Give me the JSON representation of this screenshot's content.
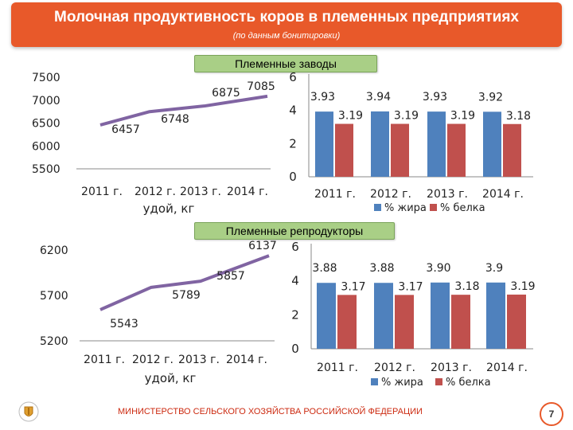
{
  "header": {
    "title": "Молочная продуктивность коров в племенных предприятиях",
    "subtitle": "(по данным бонитировки)"
  },
  "groups": {
    "zavody": "Племенные заводы",
    "reproduktory": "Племенные репродукторы"
  },
  "footer": {
    "text": "МИНИСТЕРСТВО СЕЛЬСКОГО ХОЗЯЙСТВА РОССИЙСКОЙ ФЕДЕРАЦИИ"
  },
  "page_number": "7",
  "colors": {
    "header": "#e8592a",
    "line": "#8064a2",
    "fat": "#4f81bd",
    "protein": "#c0504d",
    "group_label": "#a9cf86"
  },
  "chart_data": [
    {
      "type": "line",
      "x": [
        "2011 г.",
        "2012 г.",
        "2013 г.",
        "2014 г."
      ],
      "series": [
        {
          "values": [
            6457,
            6748,
            6875,
            7085
          ]
        }
      ],
      "xlabel": "удой, кг",
      "yticks": [
        "7500",
        "7000",
        "6500",
        "6000",
        "5500"
      ],
      "ylim": [
        5500,
        7500
      ]
    },
    {
      "type": "bar",
      "categories": [
        "2011 г.",
        "2012 г.",
        "2013 г.",
        "2014 г."
      ],
      "series": [
        {
          "name": "% жира",
          "values": [
            3.93,
            3.94,
            3.93,
            3.92
          ]
        },
        {
          "name": "% белка",
          "values": [
            3.19,
            3.19,
            3.19,
            3.18
          ]
        }
      ],
      "yticks": [
        "0",
        "2",
        "4",
        "6"
      ],
      "ylim": [
        0,
        6
      ],
      "legend": "bottom"
    },
    {
      "type": "line",
      "x": [
        "2011 г.",
        "2012 г.",
        "2013 г.",
        "2014 г."
      ],
      "series": [
        {
          "values": [
            5543,
            5789,
            5857,
            6137
          ]
        }
      ],
      "xlabel": "удой, кг",
      "yticks": [
        "6200",
        "5700",
        "5200"
      ],
      "ylim": [
        5200,
        6200
      ]
    },
    {
      "type": "bar",
      "categories": [
        "2011 г.",
        "2012 г.",
        "2013 г.",
        "2014 г."
      ],
      "series": [
        {
          "name": "% жира",
          "values": [
            3.88,
            3.88,
            3.9,
            3.9
          ],
          "labels": [
            "3.88",
            "3.88",
            "3.90",
            "3.9"
          ]
        },
        {
          "name": "% белка",
          "values": [
            3.17,
            3.17,
            3.18,
            3.19
          ],
          "labels": [
            "3.17",
            "3.17",
            "3.18",
            "3.19"
          ]
        }
      ],
      "yticks": [
        "0",
        "2",
        "4",
        "6"
      ],
      "ylim": [
        0,
        6
      ],
      "legend": "bottom"
    }
  ]
}
